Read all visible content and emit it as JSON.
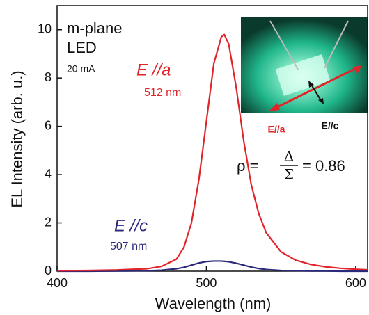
{
  "chart_data": {
    "type": "line",
    "xlabel": "Wavelength (nm)",
    "ylabel": "EL Intensity (arb. u.)",
    "xlim": [
      400,
      608
    ],
    "ylim": [
      0,
      11
    ],
    "xticks": [
      400,
      500,
      600
    ],
    "yticks": [
      0,
      2,
      4,
      6,
      8,
      10
    ],
    "x": [
      400,
      420,
      440,
      460,
      470,
      480,
      485,
      490,
      495,
      500,
      505,
      510,
      512,
      515,
      520,
      525,
      530,
      535,
      540,
      550,
      560,
      570,
      580,
      590,
      600,
      608
    ],
    "series": [
      {
        "name": "E //a",
        "color": "#e0252a",
        "values": [
          0.02,
          0.03,
          0.05,
          0.1,
          0.2,
          0.5,
          1.0,
          2.0,
          3.8,
          6.2,
          8.6,
          9.7,
          9.8,
          9.4,
          7.6,
          5.4,
          3.6,
          2.4,
          1.6,
          0.8,
          0.45,
          0.28,
          0.18,
          0.12,
          0.08,
          0.06
        ]
      },
      {
        "name": "E //c",
        "color": "#2b2a7a",
        "values": [
          0,
          0,
          0.01,
          0.02,
          0.04,
          0.1,
          0.16,
          0.25,
          0.34,
          0.4,
          0.42,
          0.42,
          0.41,
          0.39,
          0.33,
          0.25,
          0.17,
          0.11,
          0.07,
          0.03,
          0.02,
          0.01,
          0.01,
          0,
          0,
          0
        ]
      }
    ],
    "annotations": {
      "sample": "m-plane",
      "device": "LED",
      "current": "20 mA",
      "peak_a": "512 nm",
      "peak_c": "507 nm",
      "inset_a": "E//a",
      "inset_c": "E//c"
    },
    "formula": {
      "lhs": "ρ =",
      "numerator": "Δ",
      "denominator": "Σ",
      "rhs": "= 0.86"
    }
  }
}
